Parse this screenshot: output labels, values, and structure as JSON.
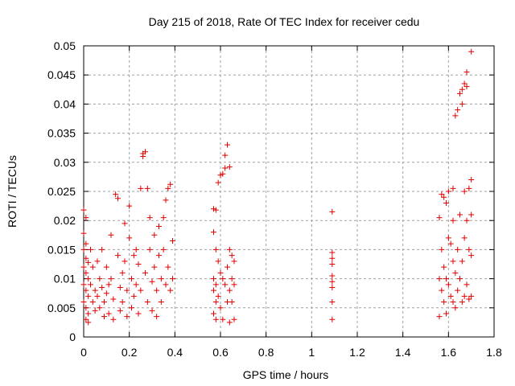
{
  "chart_data": {
    "type": "scatter",
    "title": "Day 215 of 2018, Rate Of TEC Index for receiver cedu",
    "xlabel": "GPS time / hours",
    "ylabel": "ROTI / TECUs",
    "xlim": [
      0,
      1.8
    ],
    "ylim": [
      0,
      0.05
    ],
    "x_ticks": [
      "0",
      "0.2",
      "0.4",
      "0.6",
      "0.8",
      "1",
      "1.2",
      "1.4",
      "1.6",
      "1.8"
    ],
    "y_ticks": [
      "0",
      "0.005",
      "0.01",
      "0.015",
      "0.02",
      "0.025",
      "0.03",
      "0.035",
      "0.04",
      "0.045",
      "0.05"
    ],
    "grid": true,
    "marker": "+",
    "color": "#e00000",
    "series": [
      {
        "name": "cedu",
        "points": [
          [
            0.0,
            0.0218
          ],
          [
            0.01,
            0.0205
          ],
          [
            0.0,
            0.0178
          ],
          [
            0.01,
            0.016
          ],
          [
            0.0,
            0.015
          ],
          [
            0.01,
            0.0135
          ],
          [
            0.02,
            0.0128
          ],
          [
            0.0,
            0.012
          ],
          [
            0.01,
            0.011
          ],
          [
            0.02,
            0.01
          ],
          [
            0.0,
            0.009
          ],
          [
            0.01,
            0.008
          ],
          [
            0.02,
            0.007
          ],
          [
            0.0,
            0.006
          ],
          [
            0.01,
            0.005
          ],
          [
            0.02,
            0.004
          ],
          [
            0.01,
            0.003
          ],
          [
            0.02,
            0.0025
          ],
          [
            0.03,
            0.015
          ],
          [
            0.03,
            0.009
          ],
          [
            0.04,
            0.012
          ],
          [
            0.04,
            0.006
          ],
          [
            0.05,
            0.008
          ],
          [
            0.05,
            0.0045
          ],
          [
            0.06,
            0.013
          ],
          [
            0.06,
            0.007
          ],
          [
            0.07,
            0.01
          ],
          [
            0.07,
            0.005
          ],
          [
            0.08,
            0.015
          ],
          [
            0.08,
            0.0085
          ],
          [
            0.09,
            0.006
          ],
          [
            0.09,
            0.0035
          ],
          [
            0.1,
            0.012
          ],
          [
            0.1,
            0.0075
          ],
          [
            0.11,
            0.009
          ],
          [
            0.11,
            0.004
          ],
          [
            0.12,
            0.0175
          ],
          [
            0.12,
            0.01
          ],
          [
            0.13,
            0.0065
          ],
          [
            0.13,
            0.003
          ],
          [
            0.14,
            0.0245
          ],
          [
            0.15,
            0.0238
          ],
          [
            0.15,
            0.014
          ],
          [
            0.16,
            0.0085
          ],
          [
            0.16,
            0.0045
          ],
          [
            0.17,
            0.011
          ],
          [
            0.17,
            0.006
          ],
          [
            0.18,
            0.0195
          ],
          [
            0.18,
            0.013
          ],
          [
            0.19,
            0.008
          ],
          [
            0.19,
            0.0035
          ],
          [
            0.2,
            0.0225
          ],
          [
            0.2,
            0.017
          ],
          [
            0.21,
            0.01
          ],
          [
            0.21,
            0.005
          ],
          [
            0.22,
            0.014
          ],
          [
            0.22,
            0.007
          ],
          [
            0.23,
            0.015
          ],
          [
            0.23,
            0.009
          ],
          [
            0.24,
            0.004
          ],
          [
            0.24,
            0.0125
          ],
          [
            0.25,
            0.0255
          ],
          [
            0.25,
            0.008
          ],
          [
            0.26,
            0.0315
          ],
          [
            0.26,
            0.031
          ],
          [
            0.27,
            0.0318
          ],
          [
            0.27,
            0.011
          ],
          [
            0.28,
            0.0255
          ],
          [
            0.28,
            0.006
          ],
          [
            0.29,
            0.0205
          ],
          [
            0.29,
            0.015
          ],
          [
            0.3,
            0.0095
          ],
          [
            0.3,
            0.0045
          ],
          [
            0.31,
            0.0175
          ],
          [
            0.31,
            0.012
          ],
          [
            0.32,
            0.008
          ],
          [
            0.32,
            0.0035
          ],
          [
            0.33,
            0.019
          ],
          [
            0.33,
            0.014
          ],
          [
            0.34,
            0.01
          ],
          [
            0.34,
            0.006
          ],
          [
            0.35,
            0.0205
          ],
          [
            0.35,
            0.015
          ],
          [
            0.36,
            0.0235
          ],
          [
            0.36,
            0.009
          ],
          [
            0.37,
            0.0255
          ],
          [
            0.37,
            0.012
          ],
          [
            0.38,
            0.0262
          ],
          [
            0.38,
            0.008
          ],
          [
            0.39,
            0.0165
          ],
          [
            0.39,
            0.01
          ],
          [
            0.57,
            0.022
          ],
          [
            0.58,
            0.0218
          ],
          [
            0.57,
            0.018
          ],
          [
            0.58,
            0.015
          ],
          [
            0.57,
            0.01
          ],
          [
            0.58,
            0.009
          ],
          [
            0.57,
            0.008
          ],
          [
            0.58,
            0.006
          ],
          [
            0.57,
            0.004
          ],
          [
            0.58,
            0.003
          ],
          [
            0.59,
            0.0265
          ],
          [
            0.59,
            0.013
          ],
          [
            0.59,
            0.007
          ],
          [
            0.6,
            0.0278
          ],
          [
            0.6,
            0.011
          ],
          [
            0.6,
            0.005
          ],
          [
            0.61,
            0.028
          ],
          [
            0.61,
            0.01
          ],
          [
            0.61,
            0.003
          ],
          [
            0.62,
            0.029
          ],
          [
            0.62,
            0.0312
          ],
          [
            0.62,
            0.009
          ],
          [
            0.63,
            0.033
          ],
          [
            0.63,
            0.012
          ],
          [
            0.63,
            0.006
          ],
          [
            0.64,
            0.0292
          ],
          [
            0.64,
            0.015
          ],
          [
            0.64,
            0.008
          ],
          [
            0.64,
            0.0025
          ],
          [
            0.65,
            0.014
          ],
          [
            0.65,
            0.01
          ],
          [
            0.65,
            0.006
          ],
          [
            0.66,
            0.013
          ],
          [
            0.66,
            0.009
          ],
          [
            0.66,
            0.003
          ],
          [
            1.09,
            0.0215
          ],
          [
            1.09,
            0.0145
          ],
          [
            1.09,
            0.0135
          ],
          [
            1.09,
            0.0125
          ],
          [
            1.09,
            0.0105
          ],
          [
            1.09,
            0.0095
          ],
          [
            1.09,
            0.0085
          ],
          [
            1.09,
            0.006
          ],
          [
            1.09,
            0.003
          ],
          [
            1.56,
            0.0205
          ],
          [
            1.56,
            0.01
          ],
          [
            1.56,
            0.0035
          ],
          [
            1.57,
            0.0245
          ],
          [
            1.57,
            0.015
          ],
          [
            1.57,
            0.008
          ],
          [
            1.58,
            0.024
          ],
          [
            1.58,
            0.012
          ],
          [
            1.58,
            0.006
          ],
          [
            1.59,
            0.023
          ],
          [
            1.59,
            0.01
          ],
          [
            1.59,
            0.004
          ],
          [
            1.6,
            0.025
          ],
          [
            1.6,
            0.017
          ],
          [
            1.6,
            0.009
          ],
          [
            1.61,
            0.016
          ],
          [
            1.61,
            0.007
          ],
          [
            1.62,
            0.0255
          ],
          [
            1.62,
            0.02
          ],
          [
            1.62,
            0.013
          ],
          [
            1.62,
            0.006
          ],
          [
            1.63,
            0.038
          ],
          [
            1.63,
            0.011
          ],
          [
            1.63,
            0.005
          ],
          [
            1.64,
            0.039
          ],
          [
            1.64,
            0.015
          ],
          [
            1.64,
            0.008
          ],
          [
            1.65,
            0.0418
          ],
          [
            1.65,
            0.021
          ],
          [
            1.65,
            0.01
          ],
          [
            1.66,
            0.04
          ],
          [
            1.66,
            0.0425
          ],
          [
            1.66,
            0.013
          ],
          [
            1.66,
            0.006
          ],
          [
            1.67,
            0.0435
          ],
          [
            1.67,
            0.025
          ],
          [
            1.67,
            0.017
          ],
          [
            1.67,
            0.007
          ],
          [
            1.68,
            0.043
          ],
          [
            1.68,
            0.0455
          ],
          [
            1.68,
            0.02
          ],
          [
            1.68,
            0.009
          ],
          [
            1.69,
            0.0255
          ],
          [
            1.69,
            0.015
          ],
          [
            1.69,
            0.0065
          ],
          [
            1.7,
            0.049
          ],
          [
            1.7,
            0.027
          ],
          [
            1.7,
            0.021
          ],
          [
            1.7,
            0.014
          ],
          [
            1.7,
            0.007
          ]
        ]
      }
    ]
  }
}
